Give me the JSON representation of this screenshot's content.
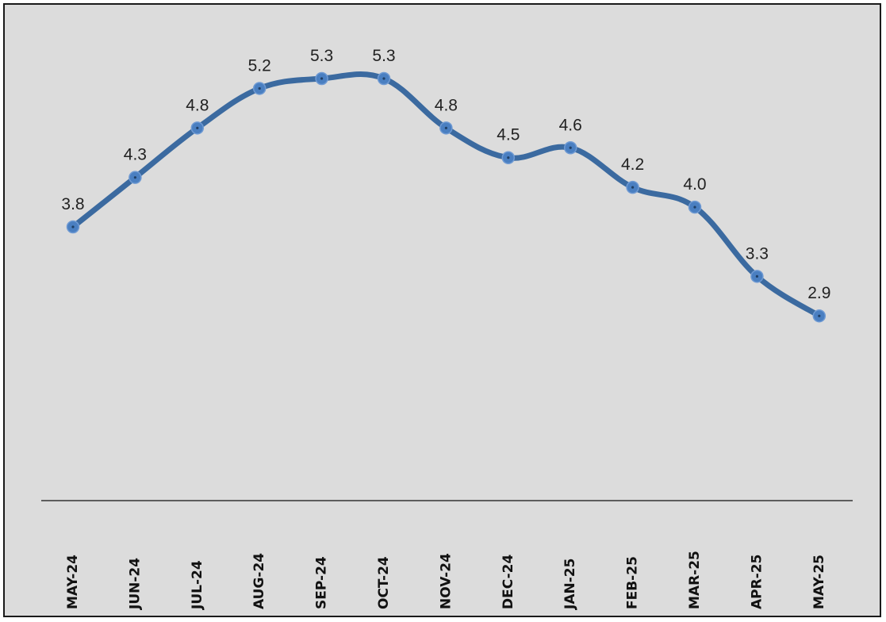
{
  "chart_data": {
    "type": "line",
    "categories": [
      "MAY-24",
      "JUN-24",
      "JUL-24",
      "AUG-24",
      "SEP-24",
      "OCT-24",
      "NOV-24",
      "DEC-24",
      "JAN-25",
      "FEB-25",
      "MAR-25",
      "APR-25",
      "MAY-25"
    ],
    "series": [
      {
        "values": [
          3.8,
          4.3,
          4.8,
          5.2,
          5.3,
          5.3,
          4.8,
          4.5,
          4.6,
          4.2,
          4.0,
          3.3,
          2.9
        ],
        "labels": [
          "3.8",
          "4.3",
          "4.8",
          "5.2",
          "5.3",
          "5.3",
          "4.8",
          "4.5",
          "4.6",
          "4.2",
          "4.0",
          "3.3",
          "2.9"
        ]
      }
    ],
    "title": "",
    "xlabel": "",
    "ylabel": "",
    "ylim": [
      0,
      6
    ],
    "grid": false,
    "legend": "none",
    "smooth": true,
    "line_color": "#3b6aa0",
    "marker_color": "#4a7fc1",
    "background_color": "#dcdcdc"
  }
}
